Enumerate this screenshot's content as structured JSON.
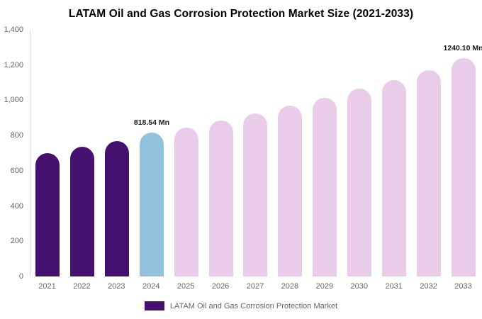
{
  "title": "LATAM Oil and Gas Corrosion Protection Market Size (2021-2033)",
  "legend": {
    "label": "LATAM Oil and Gas Corrosion Protection Market",
    "color": "#45106e"
  },
  "chart_data": {
    "type": "bar",
    "title": "LATAM Oil and Gas Corrosion Protection Market Size (2021-2033)",
    "categories": [
      "2021",
      "2022",
      "2023",
      "2024",
      "2025",
      "2026",
      "2027",
      "2028",
      "2029",
      "2030",
      "2031",
      "2032",
      "2033"
    ],
    "values": [
      700,
      735,
      770,
      818.54,
      845,
      885,
      925,
      970,
      1015,
      1065,
      1115,
      1170,
      1240.1
    ],
    "colors": [
      "#45106e",
      "#45106e",
      "#45106e",
      "#93c2de",
      "#e9cce9",
      "#e9cce9",
      "#e9cce9",
      "#e9cce9",
      "#e9cce9",
      "#e9cce9",
      "#e9cce9",
      "#e9cce9",
      "#e9cce9"
    ],
    "annotations": [
      {
        "index": 3,
        "text": "818.54 Mn"
      },
      {
        "index": 12,
        "text": "1240.10 Mn"
      }
    ],
    "xlabel": "",
    "ylabel": "",
    "ylim": [
      0,
      1400
    ],
    "yticks": [
      {
        "value": 0,
        "label": "0"
      },
      {
        "value": 200,
        "label": "200"
      },
      {
        "value": 400,
        "label": "400"
      },
      {
        "value": 600,
        "label": "600"
      },
      {
        "value": 800,
        "label": "800"
      },
      {
        "value": 1000,
        "label": "1,000"
      },
      {
        "value": 1200,
        "label": "1,200"
      },
      {
        "value": 1400,
        "label": "1,400"
      }
    ],
    "grid": false,
    "legend_position": "bottom"
  }
}
